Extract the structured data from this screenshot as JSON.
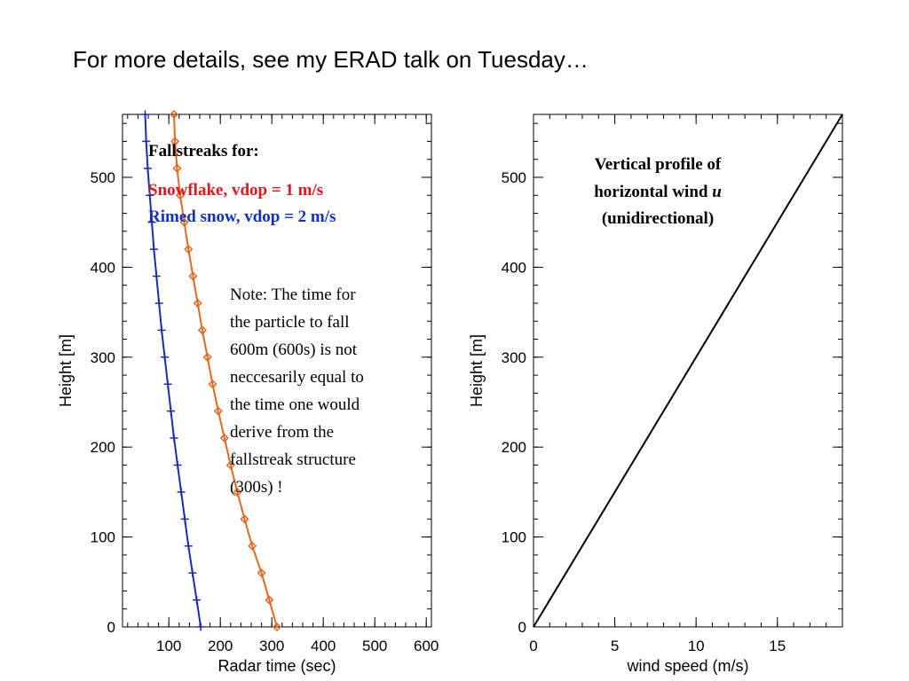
{
  "slide": {
    "title": "For more details, see my ERAD talk on Tuesday…"
  },
  "chart_data": [
    {
      "type": "line",
      "xlabel": "Radar time (sec)",
      "ylabel": "Height [m]",
      "xlim": [
        10,
        610
      ],
      "ylim": [
        0,
        570
      ],
      "x_ticks": [
        100,
        200,
        300,
        400,
        500,
        600
      ],
      "y_ticks": [
        0,
        100,
        200,
        300,
        400,
        500
      ],
      "x_tick_labels": [
        "100",
        "200",
        "300",
        "400",
        "500",
        "600"
      ],
      "y_tick_labels": [
        "0",
        "100",
        "200",
        "300",
        "400",
        "500"
      ],
      "grid": false,
      "series": [
        {
          "name": "Snowflake, vdop = 1 m/s",
          "color": "#e06a20",
          "marker": "diamond",
          "points": [
            [
              310,
              0
            ],
            [
              295,
              30
            ],
            [
              280,
              60
            ],
            [
              262,
              90
            ],
            [
              247,
              120
            ],
            [
              233,
              150
            ],
            [
              220,
              180
            ],
            [
              208,
              210
            ],
            [
              196,
              240
            ],
            [
              185,
              270
            ],
            [
              175,
              300
            ],
            [
              165,
              330
            ],
            [
              156,
              360
            ],
            [
              147,
              390
            ],
            [
              138,
              420
            ],
            [
              130,
              450
            ],
            [
              122,
              480
            ],
            [
              116,
              510
            ],
            [
              112,
              540
            ],
            [
              110,
              570
            ]
          ]
        },
        {
          "name": "Rimed snow, vdop = 2 m/s",
          "color": "#1a2cb0",
          "marker": "plus",
          "points": [
            [
              162,
              0
            ],
            [
              154,
              30
            ],
            [
              146,
              60
            ],
            [
              138,
              90
            ],
            [
              131,
              120
            ],
            [
              124,
              150
            ],
            [
              117,
              180
            ],
            [
              110,
              210
            ],
            [
              104,
              240
            ],
            [
              98,
              270
            ],
            [
              92,
              300
            ],
            [
              86,
              330
            ],
            [
              81,
              360
            ],
            [
              76,
              390
            ],
            [
              71,
              420
            ],
            [
              67,
              450
            ],
            [
              63,
              480
            ],
            [
              59,
              510
            ],
            [
              56,
              540
            ],
            [
              54,
              570
            ]
          ]
        }
      ],
      "annotations": {
        "legend_heading": "Fallstreaks for:",
        "snowflake": "Snowflake, vdop = 1 m/s",
        "rimed": "Rimed snow, vdop = 2 m/s",
        "note_lines": [
          "Note: The time for",
          "the particle to fall",
          "600m (600s) is not",
          "neccesarily equal to",
          "the time one would",
          "derive from the",
          "fallstreak structure",
          "(300s) !"
        ]
      }
    },
    {
      "type": "line",
      "xlabel": "wind speed (m/s)",
      "ylabel": "Height [m]",
      "xlim": [
        0,
        19
      ],
      "ylim": [
        0,
        570
      ],
      "x_ticks": [
        0,
        5,
        10,
        15
      ],
      "y_ticks": [
        0,
        100,
        200,
        300,
        400,
        500
      ],
      "x_tick_labels": [
        "0",
        "5",
        "10",
        "15"
      ],
      "y_tick_labels": [
        "0",
        "100",
        "200",
        "300",
        "400",
        "500"
      ],
      "grid": false,
      "series": [
        {
          "color": "#000000",
          "points": [
            [
              0,
              0
            ],
            [
              19,
              570
            ]
          ]
        }
      ],
      "annotations": {
        "title_line1": "Vertical profile of",
        "title_line2_prefix": "horizontal wind ",
        "title_line2_var": "u",
        "title_line3": "(unidirectional)"
      }
    }
  ]
}
